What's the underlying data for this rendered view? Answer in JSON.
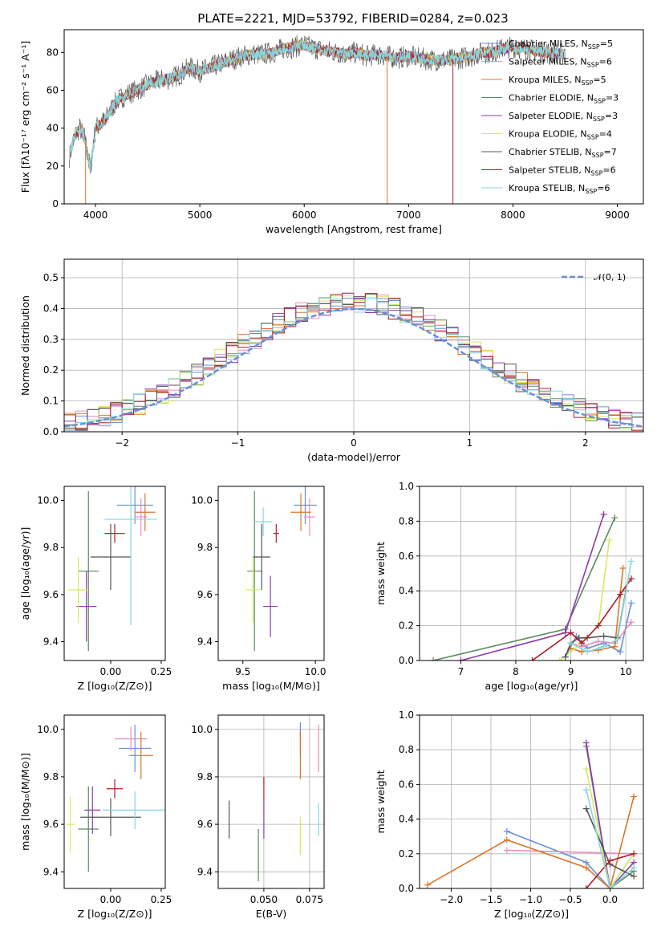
{
  "title": "PLATE=2221, MJD=53792, FIBERID=0284, z=0.023",
  "series_colors": [
    "#6a8fd8",
    "#e58fc0",
    "#d8762a",
    "#5a8a60",
    "#8e3aad",
    "#d6ea60",
    "#555555",
    "#b01c28",
    "#86d6e0"
  ],
  "chart_data": [
    {
      "id": "spectrum",
      "type": "line",
      "xlabel": "wavelength [Angstrom, rest frame]",
      "ylabel": "Flux [fλ10⁻¹⁷ erg cm⁻² s⁻¹ A⁻¹]",
      "xlim": [
        3700,
        9250
      ],
      "ylim": [
        0,
        92
      ],
      "xticks": [
        "4000",
        "5000",
        "6000",
        "7000",
        "8000",
        "9000"
      ],
      "yticks": [
        "0",
        "20",
        "40",
        "60",
        "80"
      ],
      "legend_position": "right",
      "legend": [
        {
          "name": "Chabrier MILES",
          "n": "5"
        },
        {
          "name": "Salpeter MILES",
          "n": "6"
        },
        {
          "name": "Kroupa MILES",
          "n": "5"
        },
        {
          "name": "Chabrier ELODIE",
          "n": "3"
        },
        {
          "name": "Salpeter ELODIE",
          "n": "3"
        },
        {
          "name": "Kroupa ELODIE",
          "n": "4"
        },
        {
          "name": "Chabrier STELIB",
          "n": "7"
        },
        {
          "name": "Salpeter STELIB",
          "n": "6"
        },
        {
          "name": "Kroupa STELIB",
          "n": "6"
        }
      ],
      "legend_sub": "SSP",
      "continuum": {
        "x": [
          3750,
          3800,
          3850,
          3900,
          3950,
          4000,
          4050,
          4100,
          4150,
          4200,
          4300,
          4400,
          4500,
          4600,
          4700,
          4800,
          4900,
          5000,
          5100,
          5200,
          5300,
          5400,
          5500,
          5600,
          5700,
          5800,
          5900,
          6000,
          6100,
          6200,
          6300,
          6400,
          6500,
          6600,
          6700,
          6800,
          6900,
          7000,
          7100,
          7200,
          7300,
          7400,
          7500,
          7600,
          7700,
          7800,
          7900,
          8000,
          8100,
          8200,
          8300,
          8400,
          8500
        ],
        "y": [
          25,
          36,
          40,
          34,
          18,
          40,
          42,
          45,
          50,
          54,
          58,
          60,
          63,
          65,
          66,
          68,
          72,
          70,
          72,
          74,
          76,
          78,
          79,
          79,
          80,
          82,
          83,
          84,
          82,
          81,
          80,
          79,
          80,
          78,
          79,
          78,
          77,
          78,
          77,
          76,
          76,
          76,
          77,
          78,
          80,
          80,
          82,
          83,
          82,
          81,
          80,
          80,
          79
        ]
      },
      "spikes": [
        {
          "x": 3905,
          "y_low": 0,
          "color_index": 2
        },
        {
          "x": 6795,
          "y_low": 0,
          "color_index": 2
        },
        {
          "x": 7425,
          "y_low": 0,
          "color_index": 7
        }
      ]
    },
    {
      "id": "residuals",
      "type": "histogram",
      "xlabel": "(data-model)/error",
      "ylabel": "Normed distribution",
      "xlim": [
        -2.5,
        2.5
      ],
      "ylim": [
        0,
        0.56
      ],
      "xticks": [
        "−2",
        "−1",
        "0",
        "1",
        "2"
      ],
      "xtick_values": [
        -2,
        -1,
        0,
        1,
        2
      ],
      "yticks": [
        "0.0",
        "0.1",
        "0.2",
        "0.3",
        "0.4",
        "0.5"
      ],
      "ytick_values": [
        0,
        0.1,
        0.2,
        0.3,
        0.4,
        0.5
      ],
      "grid": true,
      "bin_width": 0.1,
      "legend_position": "top-right",
      "gaussian_label": "𝒩(0, 1)",
      "gaussian_mu": 0,
      "gaussian_sigma": 1
    },
    {
      "id": "age-vs-z",
      "type": "errorbar",
      "xlabel": "Z [log₁₀(Z/Z⊙)]",
      "ylabel": "age  [log₁₀(age/yr)]",
      "xlim": [
        -0.23,
        0.27
      ],
      "ylim": [
        9.32,
        10.06
      ],
      "xticks": [
        "0.00",
        "0.25"
      ],
      "xtick_values": [
        0,
        0.25
      ],
      "yticks": [
        "9.4",
        "9.6",
        "9.8",
        "10.0"
      ],
      "ytick_values": [
        9.4,
        9.6,
        9.8,
        10.0
      ],
      "points": [
        {
          "c": 0,
          "x": 0.12,
          "xe": 0.09,
          "y": 9.98,
          "ye": 0.08
        },
        {
          "c": 1,
          "x": 0.15,
          "xe": 0.03,
          "y": 9.93,
          "ye": 0.08
        },
        {
          "c": 2,
          "x": 0.17,
          "xe": 0.05,
          "y": 9.95,
          "ye": 0.08
        },
        {
          "c": 3,
          "x": -0.11,
          "xe": 0.05,
          "y": 9.7,
          "ye": 0.34
        },
        {
          "c": 4,
          "x": -0.12,
          "xe": 0.05,
          "y": 9.55,
          "ye": 0.15
        },
        {
          "c": 5,
          "x": -0.16,
          "xe": 0.05,
          "y": 9.62,
          "ye": 0.14
        },
        {
          "c": 6,
          "x": 0.0,
          "xe": 0.1,
          "y": 9.76,
          "ye": 0.14
        },
        {
          "c": 7,
          "x": 0.02,
          "xe": 0.05,
          "y": 9.86,
          "ye": 0.04
        },
        {
          "c": 8,
          "x": 0.1,
          "xe": 0.13,
          "y": 9.92,
          "ye": 0.45
        }
      ]
    },
    {
      "id": "age-vs-mass",
      "type": "errorbar",
      "xlabel": "mass [log₁₀(M/M⊙)]",
      "ylabel": "",
      "xlim": [
        9.33,
        10.06
      ],
      "ylim": [
        9.32,
        10.06
      ],
      "xticks": [
        "9.5",
        "10.0"
      ],
      "xtick_values": [
        9.5,
        10.0
      ],
      "yticks": [
        "9.4",
        "9.6",
        "9.8",
        "10.0"
      ],
      "ytick_values": [
        9.4,
        9.6,
        9.8,
        10.0
      ],
      "points": [
        {
          "c": 0,
          "x": 9.93,
          "xe": 0.08,
          "y": 9.98,
          "ye": 0.08
        },
        {
          "c": 1,
          "x": 9.96,
          "xe": 0.04,
          "y": 9.93,
          "ye": 0.08
        },
        {
          "c": 2,
          "x": 9.9,
          "xe": 0.07,
          "y": 9.95,
          "ye": 0.08
        },
        {
          "c": 3,
          "x": 9.58,
          "xe": 0.05,
          "y": 9.7,
          "ye": 0.34
        },
        {
          "c": 4,
          "x": 9.69,
          "xe": 0.05,
          "y": 9.55,
          "ye": 0.13
        },
        {
          "c": 5,
          "x": 9.57,
          "xe": 0.05,
          "y": 9.62,
          "ye": 0.14
        },
        {
          "c": 6,
          "x": 9.63,
          "xe": 0.06,
          "y": 9.76,
          "ye": 0.14
        },
        {
          "c": 7,
          "x": 9.73,
          "xe": 0.02,
          "y": 9.86,
          "ye": 0.04
        },
        {
          "c": 8,
          "x": 9.64,
          "xe": 0.06,
          "y": 9.91,
          "ye": 0.06
        }
      ]
    },
    {
      "id": "weight-vs-age",
      "type": "line",
      "xlabel": "age  [log₁₀(age/yr)]",
      "ylabel": "mass weight",
      "xlim": [
        6.25,
        10.32
      ],
      "ylim": [
        0,
        1
      ],
      "xticks": [
        "7",
        "8",
        "9",
        "10"
      ],
      "xtick_values": [
        7,
        8,
        9,
        10
      ],
      "yticks": [
        "0.0",
        "0.2",
        "0.4",
        "0.6",
        "0.8",
        "1.0"
      ],
      "ytick_values": [
        0,
        0.2,
        0.4,
        0.6,
        0.8,
        1.0
      ],
      "grid": true,
      "series": [
        {
          "c": 0,
          "x": [
            8.9,
            9.1,
            9.3,
            9.6,
            9.9,
            10.1
          ],
          "y": [
            0.02,
            0.14,
            0.07,
            0.1,
            0.05,
            0.33
          ]
        },
        {
          "c": 1,
          "x": [
            9.0,
            9.2,
            9.5,
            9.8,
            10.1
          ],
          "y": [
            0.1,
            0.08,
            0.11,
            0.1,
            0.22
          ]
        },
        {
          "c": 2,
          "x": [
            9.0,
            9.2,
            9.5,
            9.8,
            9.95
          ],
          "y": [
            0.07,
            0.05,
            0.06,
            0.08,
            0.53
          ]
        },
        {
          "c": 3,
          "x": [
            6.5,
            8.9,
            9.8
          ],
          "y": [
            0.0,
            0.18,
            0.82
          ]
        },
        {
          "c": 4,
          "x": [
            7.0,
            8.9,
            9.6
          ],
          "y": [
            0.0,
            0.16,
            0.84
          ]
        },
        {
          "c": 5,
          "x": [
            8.8,
            9.2,
            9.5,
            9.7
          ],
          "y": [
            0.0,
            0.1,
            0.2,
            0.69
          ]
        },
        {
          "c": 6,
          "x": [
            8.9,
            9.0,
            9.15,
            9.3,
            9.6,
            9.85,
            10.0
          ],
          "y": [
            0.02,
            0.1,
            0.13,
            0.13,
            0.14,
            0.13,
            0.4
          ]
        },
        {
          "c": 7,
          "x": [
            8.3,
            9.0,
            9.2,
            9.5,
            9.9,
            10.1
          ],
          "y": [
            0.0,
            0.16,
            0.1,
            0.2,
            0.38,
            0.47
          ]
        },
        {
          "c": 8,
          "x": [
            9.0,
            9.3,
            9.6,
            9.85,
            10.1
          ],
          "y": [
            0.1,
            0.05,
            0.08,
            0.12,
            0.57
          ]
        }
      ]
    },
    {
      "id": "mass-vs-z",
      "type": "errorbar",
      "xlabel": "Z [log₁₀(Z/Z⊙)]",
      "ylabel": "mass [log₁₀(M/M⊙)]",
      "xlim": [
        -0.23,
        0.27
      ],
      "ylim": [
        9.33,
        10.06
      ],
      "xticks": [
        "0.00",
        "0.25"
      ],
      "xtick_values": [
        0,
        0.25
      ],
      "yticks": [
        "9.4",
        "9.6",
        "9.8",
        "10.0"
      ],
      "ytick_values": [
        9.4,
        9.6,
        9.8,
        10.0
      ],
      "points": [
        {
          "c": 0,
          "x": 0.12,
          "xe": 0.08,
          "y": 9.92,
          "ye": 0.1
        },
        {
          "c": 1,
          "x": 0.1,
          "xe": 0.08,
          "y": 9.96,
          "ye": 0.05
        },
        {
          "c": 2,
          "x": 0.15,
          "xe": 0.06,
          "y": 9.89,
          "ye": 0.1
        },
        {
          "c": 3,
          "x": -0.11,
          "xe": 0.05,
          "y": 9.58,
          "ye": 0.18
        },
        {
          "c": 4,
          "x": -0.09,
          "xe": 0.04,
          "y": 9.66,
          "ye": 0.1
        },
        {
          "c": 5,
          "x": -0.2,
          "xe": 0.02,
          "y": 9.6,
          "ye": 0.12
        },
        {
          "c": 6,
          "x": 0.0,
          "xe": 0.15,
          "y": 9.63,
          "ye": 0.08
        },
        {
          "c": 7,
          "x": 0.02,
          "xe": 0.04,
          "y": 9.75,
          "ye": 0.04
        },
        {
          "c": 8,
          "x": 0.12,
          "xe": 0.16,
          "y": 9.66,
          "ye": 0.08
        }
      ]
    },
    {
      "id": "mass-vs-ebv",
      "type": "errorbar",
      "xlabel": "E(B-V)",
      "ylabel": "",
      "xlim": [
        0.025,
        0.083
      ],
      "ylim": [
        9.33,
        10.06
      ],
      "xticks": [
        "0.050",
        "0.075"
      ],
      "xtick_values": [
        0.05,
        0.075
      ],
      "yticks": [
        "9.4",
        "9.6",
        "9.8",
        "10.0"
      ],
      "ytick_values": [
        9.4,
        9.6,
        9.8,
        10.0
      ],
      "grid": true,
      "points": [
        {
          "c": 0,
          "x": 0.07,
          "xe": 0,
          "y": 9.96,
          "ye": 0.07
        },
        {
          "c": 1,
          "x": 0.08,
          "xe": 0,
          "y": 9.92,
          "ye": 0.1
        },
        {
          "c": 2,
          "x": 0.07,
          "xe": 0,
          "y": 9.89,
          "ye": 0.1
        },
        {
          "c": 3,
          "x": 0.047,
          "xe": 0,
          "y": 9.47,
          "ye": 0.11
        },
        {
          "c": 4,
          "x": 0.05,
          "xe": 0,
          "y": 9.62,
          "ye": 0.08
        },
        {
          "c": 5,
          "x": 0.07,
          "xe": 0,
          "y": 9.55,
          "ye": 0.08
        },
        {
          "c": 6,
          "x": 0.031,
          "xe": 0,
          "y": 9.62,
          "ye": 0.08
        },
        {
          "c": 7,
          "x": 0.05,
          "xe": 0,
          "y": 9.75,
          "ye": 0.05
        },
        {
          "c": 8,
          "x": 0.08,
          "xe": 0,
          "y": 9.62,
          "ye": 0.07
        }
      ]
    },
    {
      "id": "weight-vs-z",
      "type": "line",
      "xlabel": "Z [log₁₀(Z/Z⊙)]",
      "ylabel": "mass weight",
      "xlim": [
        -2.4,
        0.42
      ],
      "ylim": [
        0,
        1
      ],
      "xticks": [
        "−2.0",
        "−1.5",
        "−1.0",
        "−0.5",
        "0.0"
      ],
      "xtick_values": [
        -2.0,
        -1.5,
        -1.0,
        -0.5,
        0.0
      ],
      "yticks": [
        "0.0",
        "0.2",
        "0.4",
        "0.6",
        "0.8",
        "1.0"
      ],
      "ytick_values": [
        0,
        0.2,
        0.4,
        0.6,
        0.8,
        1.0
      ],
      "grid": true,
      "series": [
        {
          "c": 0,
          "x": [
            -1.3,
            -0.3,
            0.0,
            0.3
          ],
          "y": [
            0.33,
            0.15,
            0.0,
            0.2
          ]
        },
        {
          "c": 1,
          "x": [
            -1.3,
            0.3
          ],
          "y": [
            0.22,
            0.2
          ]
        },
        {
          "c": 2,
          "x": [
            -2.3,
            -1.3,
            -0.3,
            0.0,
            0.3
          ],
          "y": [
            0.02,
            0.28,
            0.12,
            0.0,
            0.53
          ]
        },
        {
          "c": 3,
          "x": [
            -0.3,
            0.0,
            0.3
          ],
          "y": [
            0.82,
            0.0,
            0.1
          ]
        },
        {
          "c": 4,
          "x": [
            -0.3,
            0.0,
            0.3
          ],
          "y": [
            0.84,
            0.0,
            0.15
          ]
        },
        {
          "c": 5,
          "x": [
            -0.3,
            0.0,
            0.3
          ],
          "y": [
            0.69,
            0.0,
            0.2
          ]
        },
        {
          "c": 6,
          "x": [
            -0.3,
            0.0,
            0.3
          ],
          "y": [
            0.46,
            0.14,
            0.07
          ]
        },
        {
          "c": 7,
          "x": [
            -0.3,
            0.0,
            0.3
          ],
          "y": [
            0.0,
            0.16,
            0.2
          ]
        },
        {
          "c": 8,
          "x": [
            -0.3,
            0.0,
            0.3
          ],
          "y": [
            0.57,
            0.0,
            0.12
          ]
        }
      ]
    }
  ]
}
